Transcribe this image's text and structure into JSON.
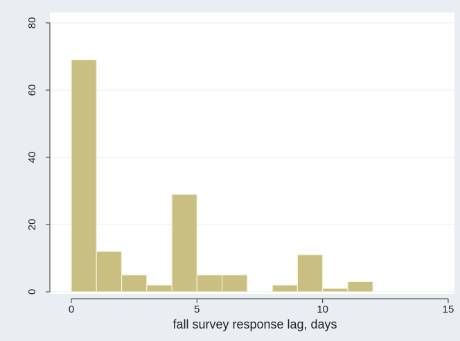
{
  "chart_data": {
    "type": "bar",
    "title": "",
    "xlabel": "fall survey response lag, days",
    "ylabel": "",
    "xlim": [
      0,
      15
    ],
    "ylim": [
      0,
      80
    ],
    "x_ticks": [
      "0",
      "5",
      "10",
      "15"
    ],
    "y_ticks": [
      "0",
      "20",
      "40",
      "60",
      "80"
    ],
    "grid": "horizontal",
    "bin_width": 1,
    "bins": [
      {
        "start": 0,
        "value": 69
      },
      {
        "start": 1,
        "value": 12
      },
      {
        "start": 2,
        "value": 5
      },
      {
        "start": 3,
        "value": 2
      },
      {
        "start": 4,
        "value": 29
      },
      {
        "start": 5,
        "value": 5
      },
      {
        "start": 6,
        "value": 5
      },
      {
        "start": 8,
        "value": 2
      },
      {
        "start": 9,
        "value": 11
      },
      {
        "start": 10,
        "value": 1
      },
      {
        "start": 11,
        "value": 3
      }
    ],
    "colors": {
      "bar_fill": "#c8bf80",
      "bar_stroke": "#f4f1dc",
      "plot_bg": "#ffffff",
      "outer_bg": "#e8eef1",
      "grid": "#e6ecef",
      "axis": "#333333"
    }
  }
}
